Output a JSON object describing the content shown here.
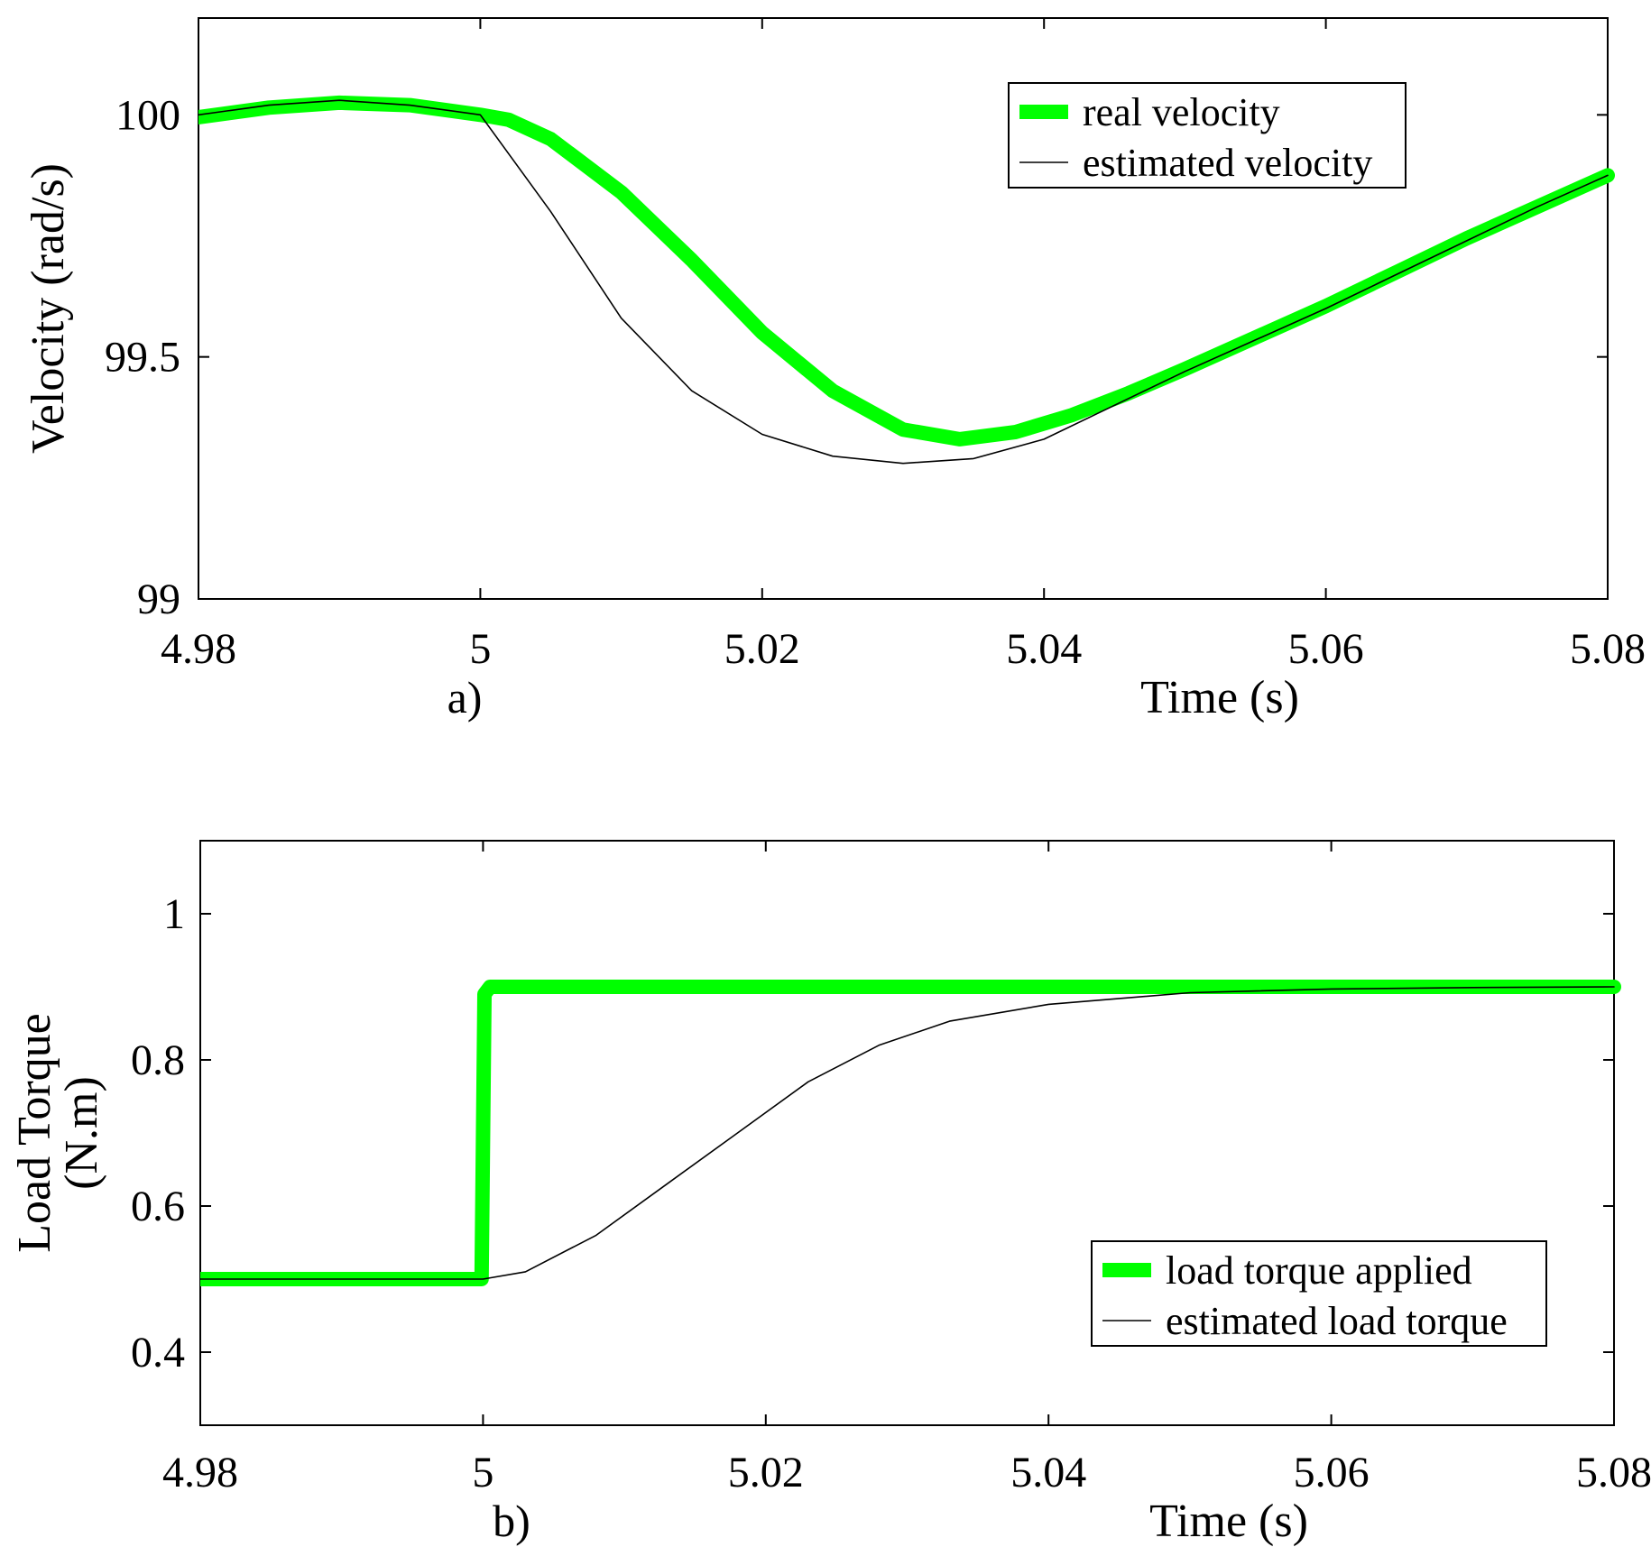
{
  "colors": {
    "real": "#00ff00",
    "estimated": "#000000",
    "background": "#ffffff"
  },
  "chart_data": [
    {
      "type": "line",
      "panel_label": "a)",
      "xlabel": "Time (s)",
      "ylabel": "Velocity  (rad/s)",
      "xlim": [
        4.98,
        5.08
      ],
      "ylim": [
        99,
        100.2
      ],
      "xticks": [
        4.98,
        5.0,
        5.02,
        5.04,
        5.06,
        5.08
      ],
      "xtick_labels": [
        "4.98",
        "5",
        "5.02",
        "5.04",
        "5.06",
        "5.08"
      ],
      "yticks": [
        99,
        99.5,
        100
      ],
      "ytick_labels": [
        "99",
        "99.5",
        "100"
      ],
      "legend_position": "top-right",
      "series": [
        {
          "name": "real velocity",
          "style": "thick",
          "x": [
            4.98,
            4.985,
            4.99,
            4.995,
            5.0,
            5.002,
            5.005,
            5.01,
            5.015,
            5.02,
            5.025,
            5.03,
            5.034,
            5.038,
            5.042,
            5.046,
            5.05,
            5.055,
            5.06,
            5.065,
            5.07,
            5.075,
            5.08
          ],
          "y": [
            99.995,
            100.015,
            100.025,
            100.02,
            100.0,
            99.99,
            99.95,
            99.84,
            99.7,
            99.55,
            99.43,
            99.35,
            99.33,
            99.345,
            99.38,
            99.425,
            99.475,
            99.54,
            99.605,
            99.675,
            99.745,
            99.81,
            99.875
          ]
        },
        {
          "name": "estimated velocity",
          "style": "thin",
          "x": [
            4.98,
            4.985,
            4.99,
            4.995,
            5.0,
            5.005,
            5.01,
            5.015,
            5.02,
            5.025,
            5.03,
            5.035,
            5.04,
            5.045,
            5.05,
            5.055,
            5.06,
            5.065,
            5.07,
            5.075,
            5.08
          ],
          "y": [
            100.0,
            100.02,
            100.03,
            100.02,
            100.0,
            99.8,
            99.58,
            99.43,
            99.34,
            99.295,
            99.28,
            99.29,
            99.33,
            99.4,
            99.47,
            99.535,
            99.6,
            99.67,
            99.74,
            99.81,
            99.875
          ]
        }
      ]
    },
    {
      "type": "line",
      "panel_label": "b)",
      "xlabel": "Time (s)",
      "ylabel": "Load Torque\n(N.m)",
      "ylabel_lines": [
        "Load Torque",
        "(N.m)"
      ],
      "xlim": [
        4.98,
        5.08
      ],
      "ylim": [
        0.3,
        1.1
      ],
      "xticks": [
        4.98,
        5.0,
        5.02,
        5.04,
        5.06,
        5.08
      ],
      "xtick_labels": [
        "4.98",
        "5",
        "5.02",
        "5.04",
        "5.06",
        "5.08"
      ],
      "yticks": [
        0.4,
        0.6,
        0.8,
        1.0
      ],
      "ytick_labels": [
        "0.4",
        "0.6",
        "0.8",
        "1"
      ],
      "legend_position": "bottom-right",
      "series": [
        {
          "name": "load torque applied",
          "style": "thick",
          "x": [
            4.98,
            4.9999,
            5.0001,
            5.0005,
            5.08
          ],
          "y": [
            0.5,
            0.5,
            0.89,
            0.9,
            0.9
          ]
        },
        {
          "name": "estimated load torque",
          "style": "thin",
          "x": [
            4.98,
            5.0,
            5.003,
            5.008,
            5.013,
            5.018,
            5.023,
            5.028,
            5.033,
            5.04,
            5.05,
            5.06,
            5.07,
            5.08
          ],
          "y": [
            0.5,
            0.5,
            0.51,
            0.56,
            0.63,
            0.7,
            0.77,
            0.82,
            0.853,
            0.876,
            0.892,
            0.897,
            0.899,
            0.9
          ]
        }
      ]
    }
  ]
}
